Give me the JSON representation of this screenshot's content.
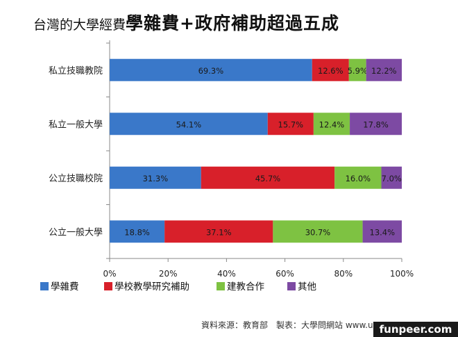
{
  "title": {
    "light": "台灣的大學經費",
    "bold": "學雜費+政府補助超過五成"
  },
  "chart_data": {
    "type": "bar",
    "orientation": "horizontal",
    "stacked": true,
    "percent_stacked": true,
    "categories": [
      "私立技職教院",
      "私立一般大學",
      "公立技職校院",
      "公立一般大學"
    ],
    "series": [
      {
        "name": "學雜費",
        "color": "#3a78c9",
        "values": [
          69.3,
          54.1,
          31.3,
          18.8
        ]
      },
      {
        "name": "學校教學研究補助",
        "color": "#d8202a",
        "values": [
          12.6,
          15.7,
          45.7,
          37.1
        ]
      },
      {
        "name": "建教合作",
        "color": "#7ec242",
        "values": [
          5.9,
          12.4,
          16.0,
          30.7
        ]
      },
      {
        "name": "其他",
        "color": "#7d4aa3",
        "values": [
          12.2,
          17.8,
          7.0,
          13.4
        ]
      }
    ],
    "xlim": [
      0,
      100
    ],
    "x_ticks": [
      "0%",
      "20%",
      "40%",
      "60%",
      "80%",
      "100%"
    ],
    "legend_position": "bottom-left",
    "grid": false
  },
  "footer": {
    "source": "資料來源：教育部　製表：大學問網站 www.unews.com.tw",
    "watermark": "funpeer.com"
  }
}
